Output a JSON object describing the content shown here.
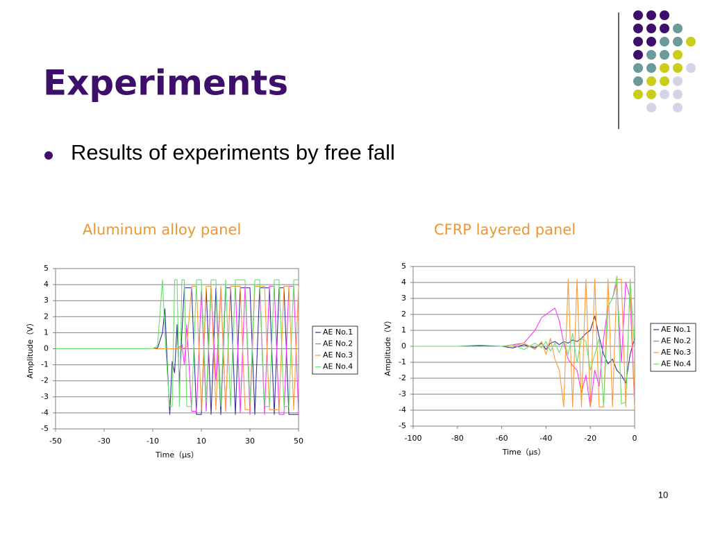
{
  "title": "Experiments",
  "bullet": "Results of experiments by free fall",
  "page_number": "10",
  "chart_data": [
    {
      "type": "line",
      "title": "Aluminum alloy panel",
      "x_label": "Time（μs）",
      "y_label": "Amplitude（V）",
      "x": [
        -50,
        -40,
        -30,
        -20,
        -10,
        -8,
        -6,
        -5,
        -4,
        -3,
        -2,
        -1,
        0,
        1,
        2,
        3,
        4,
        6,
        8,
        10,
        12,
        14,
        16,
        18,
        20,
        22,
        24,
        26,
        28,
        30,
        32,
        34,
        36,
        38,
        40,
        42,
        44,
        46,
        48,
        50
      ],
      "series": [
        {
          "name": "AE No.1",
          "color": "#333399",
          "values": [
            0,
            0,
            0,
            0,
            0,
            0.05,
            1.0,
            2.5,
            -1,
            -4.1,
            -0.8,
            -1.5,
            1.5,
            -2.2,
            1,
            3.8,
            3.8,
            3.8,
            -4.1,
            -4.1,
            3.8,
            -4.1,
            3.8,
            -4.1,
            3.8,
            3.8,
            -4.1,
            3.8,
            3.8,
            3.8,
            -4.1,
            3.8,
            3.8,
            3.8,
            -4.1,
            3.8,
            3.8,
            -4.1,
            -4.1,
            -4.1
          ]
        },
        {
          "name": "AE No.2",
          "color": "#ff33ff",
          "values": [
            0,
            0,
            0,
            0,
            0,
            0,
            0,
            0,
            0,
            0,
            0,
            0,
            0,
            0.1,
            0.3,
            -1,
            1.5,
            -3.9,
            -3.9,
            3.6,
            -3.9,
            3.8,
            -2,
            3.8,
            -3.9,
            3.9,
            3.9,
            -4.0,
            3.9,
            -4.1,
            3.9,
            3.9,
            -4.1,
            3.9,
            3.9,
            -4.1,
            -4.1,
            3.9,
            3.9,
            -4.1
          ]
        },
        {
          "name": "AE No.3",
          "color": "#ff9933",
          "values": [
            0,
            0,
            0,
            0,
            0,
            0,
            0,
            0,
            0,
            0,
            0,
            0,
            0,
            0,
            0,
            0.05,
            0.1,
            3.9,
            3.9,
            -3.8,
            3.9,
            3.9,
            -3.8,
            3.9,
            -3.8,
            3.9,
            3.9,
            3.9,
            -3.8,
            -3.8,
            3.9,
            3.9,
            3.9,
            -3.8,
            -3.8,
            -3.8,
            3.9,
            3.9,
            -3.8,
            3.9
          ]
        },
        {
          "name": "AE No.4",
          "color": "#66e066",
          "values": [
            0,
            0,
            0,
            0,
            0,
            0.2,
            4.3,
            1,
            -1.5,
            -3.6,
            -3.6,
            4.3,
            4.3,
            -3.6,
            4.3,
            4.3,
            -3.6,
            -3.6,
            4.3,
            4.3,
            -3.4,
            4.3,
            4.3,
            -3.6,
            4.3,
            -3.6,
            4.3,
            4.3,
            4.3,
            -3.4,
            4.3,
            4.3,
            -3.6,
            -3.6,
            4.3,
            4.3,
            -3.6,
            -3.6,
            4.3,
            4.3
          ]
        }
      ],
      "xlim": [
        -50,
        50
      ],
      "xticks": [
        -50,
        -30,
        -10,
        10,
        30,
        50
      ],
      "ylim": [
        -5,
        5
      ],
      "yticks": [
        -5,
        -4,
        -3,
        -2,
        -1,
        0,
        1,
        2,
        3,
        4,
        5
      ],
      "grid": true,
      "legend": "right"
    },
    {
      "type": "line",
      "title": "CFRP layered panel",
      "x_label": "Time（μs）",
      "y_label": "Amplitude（V）",
      "x": [
        -100,
        -90,
        -80,
        -70,
        -60,
        -55,
        -50,
        -45,
        -42,
        -40,
        -38,
        -36,
        -34,
        -32,
        -30,
        -28,
        -26,
        -24,
        -22,
        -20,
        -18,
        -16,
        -14,
        -12,
        -10,
        -8,
        -6,
        -4,
        -2,
        0
      ],
      "series": [
        {
          "name": "AE No.1",
          "color": "#333399",
          "values": [
            0,
            0,
            0,
            0.05,
            0,
            -0.1,
            0.1,
            -0.1,
            0.2,
            -0.2,
            0.2,
            0.3,
            0.1,
            0.3,
            0.2,
            0.4,
            0.3,
            0.5,
            0.8,
            1.0,
            1.9,
            0.6,
            -0.5,
            -1.1,
            -0.8,
            -1.5,
            -1.8,
            -2.3,
            -0.5,
            0.5
          ]
        },
        {
          "name": "AE No.2",
          "color": "#ff33ff",
          "values": [
            0,
            0,
            0,
            0,
            0,
            0.1,
            0.2,
            1.0,
            1.8,
            2.0,
            2.2,
            2.4,
            1.6,
            0.2,
            -0.8,
            -1.2,
            -1.5,
            -2.9,
            -1.8,
            -3.8,
            -1.5,
            -2.5,
            0.5,
            2.5,
            3.0,
            4.0,
            -1,
            4.0,
            3.0,
            -3.8
          ]
        },
        {
          "name": "AE No.3",
          "color": "#ff9933",
          "values": [
            0,
            0,
            0,
            0,
            0,
            0,
            0.2,
            -0.2,
            0.3,
            -0.5,
            0.5,
            -0.8,
            -1.5,
            -3.8,
            4.2,
            -3.8,
            4.2,
            -3.8,
            4.2,
            -3.8,
            4.2,
            -3.8,
            -3.8,
            4.2,
            -3.8,
            4.2,
            4.2,
            -3.8,
            4.2,
            -3.8
          ]
        },
        {
          "name": "AE No.4",
          "color": "#66e066",
          "values": [
            0,
            0,
            0,
            0,
            0,
            0.1,
            -0.2,
            0.2,
            -0.1,
            0.3,
            -0.3,
            0.2,
            -0.4,
            0.3,
            -0.5,
            0.8,
            -1.0,
            0.5,
            0.3,
            -1.5,
            -0.5,
            0.5,
            -3.8,
            2.5,
            3.0,
            4.4,
            -3.6,
            -3.5,
            4.1,
            -0.2
          ]
        }
      ],
      "xlim": [
        -100,
        0
      ],
      "xticks": [
        -100,
        -80,
        -60,
        -40,
        -20,
        0
      ],
      "ylim": [
        -5,
        5
      ],
      "yticks": [
        -5,
        -4,
        -3,
        -2,
        -1,
        0,
        1,
        2,
        3,
        4,
        5
      ],
      "grid": true,
      "legend": "right"
    }
  ]
}
